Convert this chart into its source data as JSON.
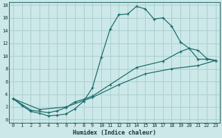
{
  "xlabel": "Humidex (Indice chaleur)",
  "background_color": "#cce8e8",
  "grid_color": "#aacfcf",
  "line_color": "#1a6b6b",
  "xlim": [
    -0.5,
    23.5
  ],
  "ylim": [
    -0.5,
    18.5
  ],
  "xticks": [
    0,
    1,
    2,
    3,
    4,
    5,
    6,
    7,
    8,
    9,
    10,
    11,
    12,
    13,
    14,
    15,
    16,
    17,
    18,
    19,
    20,
    21,
    22,
    23
  ],
  "yticks": [
    0,
    2,
    4,
    6,
    8,
    10,
    12,
    14,
    16,
    18
  ],
  "line1_x": [
    0,
    1,
    2,
    3,
    4,
    5,
    6,
    7,
    8,
    9,
    10,
    11,
    12,
    13,
    14,
    15,
    16,
    17,
    18,
    19,
    20,
    21,
    22,
    23
  ],
  "line1_y": [
    3.3,
    2.2,
    1.3,
    1.0,
    0.6,
    0.7,
    0.9,
    1.7,
    2.9,
    5.0,
    9.8,
    14.2,
    16.5,
    16.6,
    17.8,
    17.4,
    15.8,
    16.0,
    14.7,
    12.2,
    11.2,
    9.5,
    9.5,
    9.3
  ],
  "line2_x": [
    0,
    2,
    3,
    4,
    5,
    6,
    7,
    8,
    9,
    11,
    14,
    17,
    19,
    20,
    21,
    22,
    23
  ],
  "line2_y": [
    3.3,
    1.5,
    1.3,
    1.1,
    1.4,
    1.9,
    2.8,
    3.2,
    3.7,
    5.5,
    8.2,
    9.2,
    10.7,
    11.2,
    10.9,
    9.6,
    9.3
  ],
  "line3_x": [
    0,
    3,
    6,
    9,
    12,
    15,
    18,
    21,
    23
  ],
  "line3_y": [
    3.3,
    1.6,
    2.0,
    3.5,
    5.5,
    7.2,
    8.0,
    8.5,
    9.3
  ]
}
